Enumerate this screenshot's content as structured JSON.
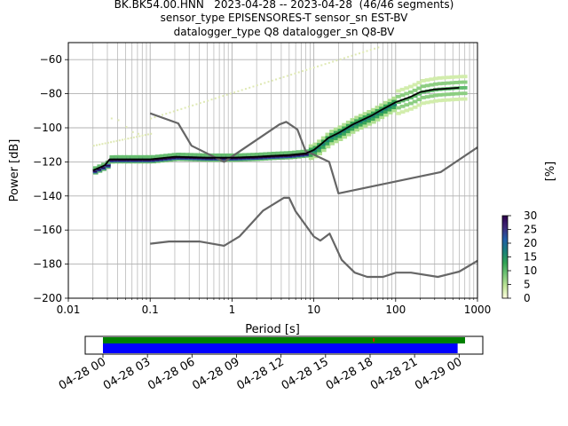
{
  "title": {
    "line1": "BK.BK54.00.HNN   2023-04-28 -- 2023-04-28  (46/46 segments)",
    "line2": "sensor_type EPISENSORES-T sensor_sn EST-BV",
    "line3": "datalogger_type Q8 datalogger_sn Q8-BV"
  },
  "chart_data": [
    {
      "type": "heatmap",
      "xlabel": "Period [s]",
      "ylabel": "Power [dB]",
      "xscale": "log",
      "xlim": [
        0.01,
        1000
      ],
      "ylim": [
        -200,
        -50
      ],
      "xticks": [
        0.01,
        0.1,
        1,
        10,
        100,
        1000
      ],
      "xtick_labels": [
        "0.01",
        "0.1",
        "1",
        "10",
        "100",
        "1000"
      ],
      "yticks": [
        -60,
        -80,
        -100,
        -120,
        -140,
        -160,
        -180,
        -200
      ],
      "ytick_labels": [
        "−60",
        "−80",
        "−100",
        "−120",
        "−140",
        "−160",
        "−180",
        "−200"
      ],
      "grid": true,
      "colorbar": {
        "label": "[%]",
        "range": [
          0,
          30
        ],
        "ticks": [
          0,
          5,
          10,
          15,
          20,
          25,
          30
        ],
        "tick_labels": [
          "0",
          "5",
          "10",
          "15",
          "20",
          "25",
          "30"
        ],
        "colormap_stops": [
          "#ffffe0",
          "#c2e699",
          "#78c679",
          "#31a354",
          "#1a7f7a",
          "#225ea8",
          "#3f2a7a",
          "#2d004b"
        ]
      },
      "series": [
        {
          "kind": "nlnm",
          "color": "#666666",
          "x": [
            0.1,
            0.17,
            0.4,
            0.8,
            1.24,
            2.4,
            4.3,
            5.0,
            6.0,
            10,
            12,
            15.6,
            21.9,
            31.6,
            45,
            70,
            101,
            154,
            328,
            600,
            1000
          ],
          "y": [
            -168,
            -166.7,
            -166.7,
            -169.2,
            -163.7,
            -148.6,
            -141.1,
            -141.1,
            -149,
            -163.8,
            -166.2,
            -162.1,
            -177.5,
            -185,
            -187.5,
            -187.5,
            -185,
            -185,
            -187.5,
            -184.4,
            -178
          ]
        },
        {
          "kind": "nhnm",
          "color": "#666666",
          "x": [
            0.1,
            0.22,
            0.32,
            0.8,
            3.8,
            4.6,
            6.3,
            7.9,
            15.4,
            20,
            354.8,
            1000
          ],
          "y": [
            -91.5,
            -97.4,
            -110.5,
            -120,
            -98,
            -96.5,
            -101,
            -113.5,
            -120,
            -138.5,
            -126,
            -111.5
          ]
        },
        {
          "kind": "mode",
          "color": "#000000",
          "x": [
            0.02,
            0.025,
            0.028,
            0.032,
            0.1,
            0.2,
            0.5,
            1,
            2,
            3,
            5,
            8,
            10,
            12,
            15,
            20,
            30,
            50,
            70,
            100,
            150,
            200,
            300,
            600
          ],
          "y": [
            -125,
            -123,
            -122,
            -118.5,
            -118.5,
            -117,
            -117.5,
            -117.5,
            -117,
            -116.5,
            -116,
            -115,
            -113,
            -110,
            -106,
            -103,
            -98,
            -93,
            -89,
            -85,
            -82,
            -79,
            -77.5,
            -76.5
          ]
        }
      ]
    },
    {
      "type": "timeline",
      "xlabels": [
        "04-28 00",
        "04-28 03",
        "04-28 06",
        "04-28 09",
        "04-28 12",
        "04-28 15",
        "04-28 18",
        "04-28 21",
        "04-29 00"
      ],
      "data_coverage": {
        "color": "#008000",
        "start_hour": 0,
        "end_hour": 24.4
      },
      "psd_coverage": {
        "color": "#0000ff",
        "start_hour": 0,
        "end_hour": 23.9
      },
      "marker": {
        "color": "#ff0000",
        "hour": 18.2
      }
    }
  ]
}
